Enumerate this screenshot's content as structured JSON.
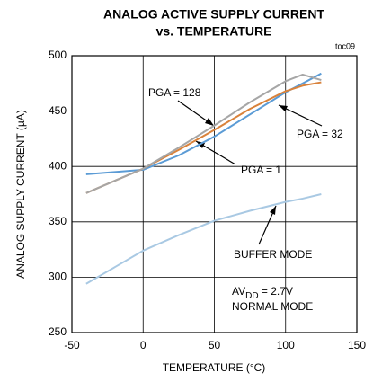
{
  "chart_data": {
    "type": "line",
    "title": [
      "ANALOG ACTIVE SUPPLY CURRENT",
      "vs. TEMPERATURE"
    ],
    "figure_id": "toc09",
    "x_label": "TEMPERATURE (°C)",
    "y_label": "ANALOG SUPPLY CURRENT (µA)",
    "x": [
      -40,
      -20,
      0,
      25,
      50,
      75,
      100,
      112,
      125
    ],
    "series": [
      {
        "name": "PGA = 1",
        "color": "#5b9bd5",
        "values": [
          393,
          395,
          397,
          410,
          427,
          447,
          467,
          475,
          484
        ]
      },
      {
        "name": "PGA = 32",
        "color": "#d9823b",
        "values": [
          376,
          387,
          398,
          415,
          433,
          452,
          468,
          473,
          476
        ]
      },
      {
        "name": "PGA = 128",
        "color": "#a6a6a6",
        "values": [
          376,
          387,
          398,
          417,
          437,
          458,
          477,
          483,
          478
        ]
      },
      {
        "name": "BUFFER MODE",
        "color": "#a9c9e3",
        "values": [
          294,
          309,
          324,
          338,
          351,
          360,
          368,
          371,
          375
        ]
      }
    ],
    "annotation": {
      "parts": [
        "AV",
        "DD",
        " = 2.7V"
      ],
      "line2": "NORMAL MODE"
    },
    "xlim": [
      -50,
      150
    ],
    "xticks": [
      -50,
      0,
      50,
      100,
      150
    ],
    "ylim": [
      250,
      500
    ],
    "yticks": [
      250,
      300,
      350,
      400,
      450,
      500
    ],
    "grid": true
  }
}
